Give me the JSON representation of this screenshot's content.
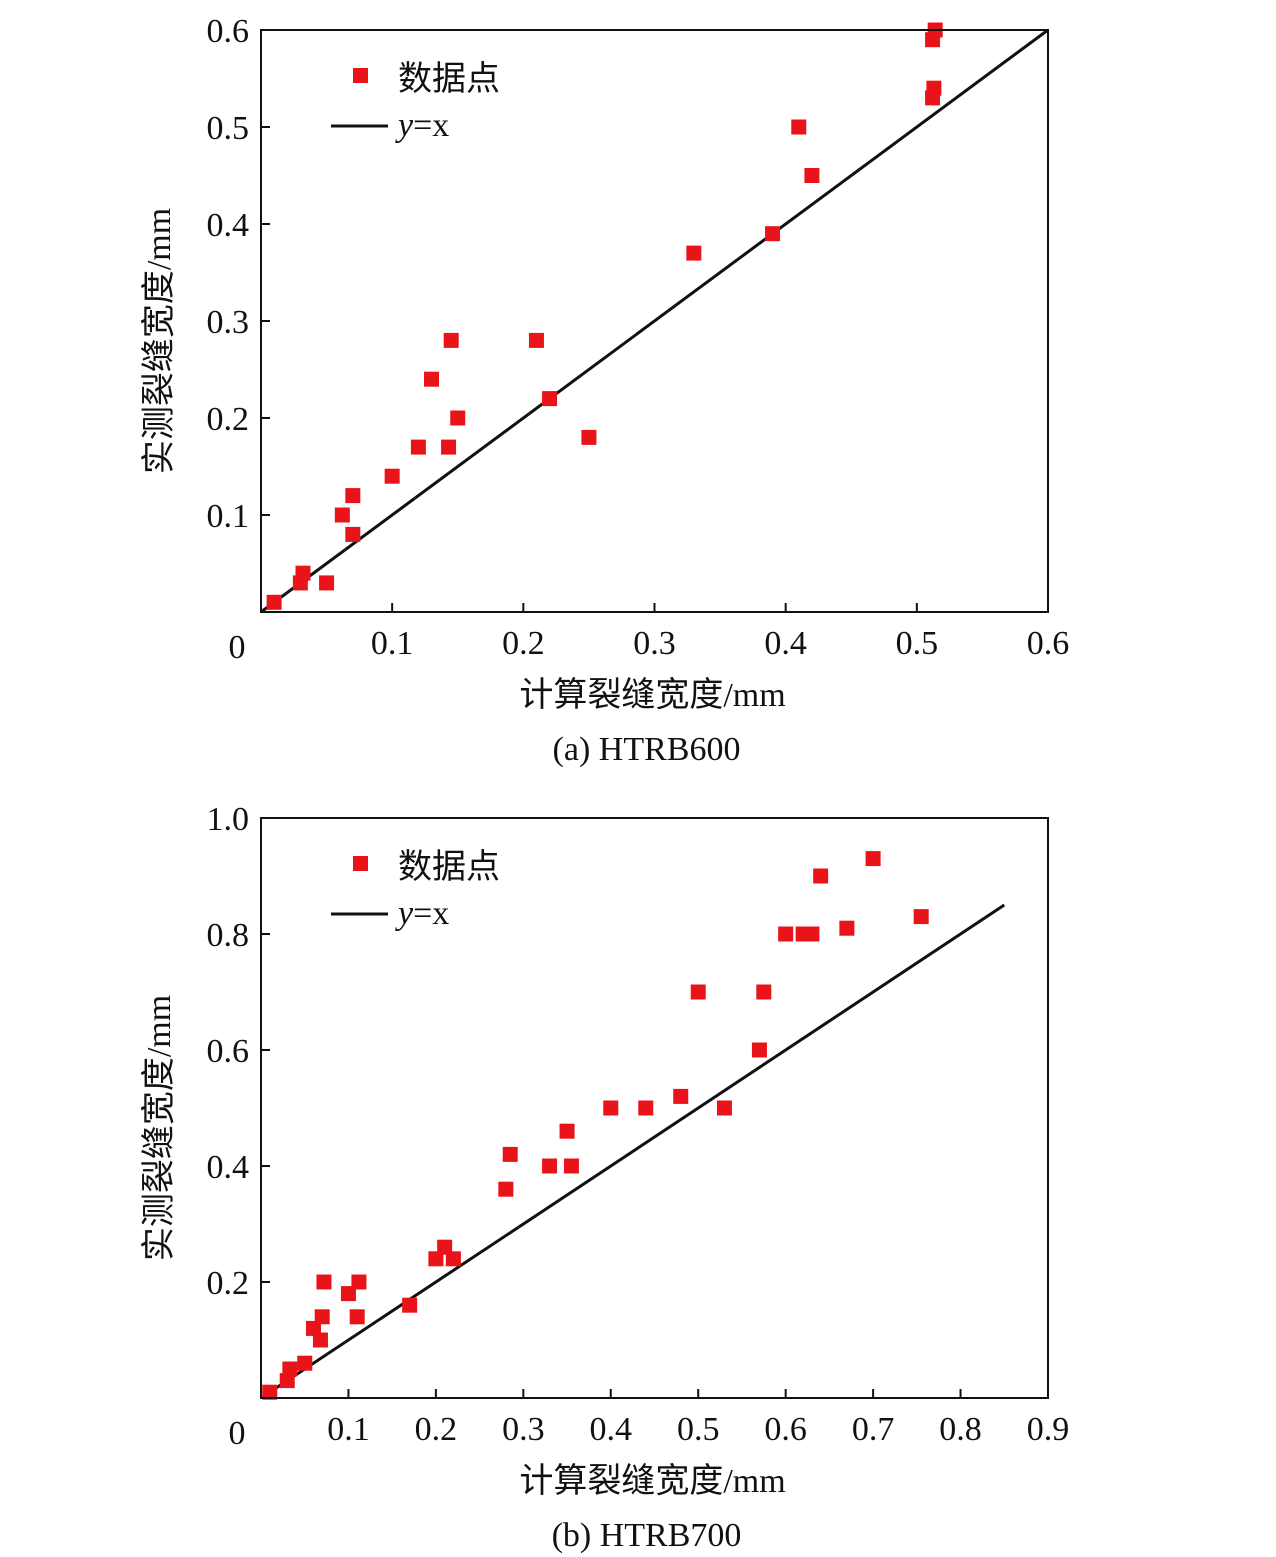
{
  "chart_data": [
    {
      "type": "scatter",
      "caption": "(a) HTRB600",
      "xlabel": "计算裂缝宽度/mm",
      "ylabel": "实测裂缝宽度/mm",
      "xlim": [
        0,
        0.6
      ],
      "ylim": [
        0,
        0.6
      ],
      "x_ticks": [
        "0",
        "0.1",
        "0.2",
        "0.3",
        "0.4",
        "0.5",
        "0.6"
      ],
      "y_ticks": [
        "0.1",
        "0.2",
        "0.3",
        "0.4",
        "0.5",
        "0.6"
      ],
      "legend": {
        "placement": "top-left",
        "points_label": "数据点",
        "line_label_main": "y",
        "line_label_rest": "=x"
      },
      "line": {
        "name": "y=x",
        "x": [
          0,
          0.6
        ],
        "y": [
          0,
          0.6
        ]
      },
      "series": [
        {
          "name": "数据点",
          "color": "#e8141a",
          "points": [
            [
              0.01,
              0.01
            ],
            [
              0.03,
              0.03
            ],
            [
              0.032,
              0.04
            ],
            [
              0.05,
              0.03
            ],
            [
              0.062,
              0.1
            ],
            [
              0.07,
              0.08
            ],
            [
              0.07,
              0.12
            ],
            [
              0.1,
              0.14
            ],
            [
              0.12,
              0.17
            ],
            [
              0.13,
              0.24
            ],
            [
              0.143,
              0.17
            ],
            [
              0.145,
              0.28
            ],
            [
              0.15,
              0.2
            ],
            [
              0.21,
              0.28
            ],
            [
              0.22,
              0.22
            ],
            [
              0.25,
              0.18
            ],
            [
              0.33,
              0.37
            ],
            [
              0.39,
              0.39
            ],
            [
              0.41,
              0.5
            ],
            [
              0.42,
              0.45
            ],
            [
              0.512,
              0.53
            ],
            [
              0.513,
              0.54
            ],
            [
              0.512,
              0.59
            ],
            [
              0.514,
              0.6
            ]
          ]
        }
      ]
    },
    {
      "type": "scatter",
      "caption": "(b) HTRB700",
      "xlabel": "计算裂缝宽度/mm",
      "ylabel": "实测裂缝宽度/mm",
      "xlim": [
        0,
        0.9
      ],
      "ylim": [
        0,
        1.0
      ],
      "x_ticks": [
        "0",
        "0.1",
        "0.2",
        "0.3",
        "0.4",
        "0.5",
        "0.6",
        "0.7",
        "0.8",
        "0.9"
      ],
      "y_ticks": [
        "0.2",
        "0.4",
        "0.6",
        "0.8",
        "1.0"
      ],
      "legend": {
        "placement": "top-left",
        "points_label": "数据点",
        "line_label_main": "y",
        "line_label_rest": "=x"
      },
      "line": {
        "name": "y=x",
        "x": [
          0,
          0.85
        ],
        "y": [
          0,
          0.85
        ]
      },
      "series": [
        {
          "name": "数据点",
          "color": "#e8141a",
          "points": [
            [
              0.01,
              0.01
            ],
            [
              0.03,
              0.03
            ],
            [
              0.033,
              0.05
            ],
            [
              0.05,
              0.06
            ],
            [
              0.06,
              0.12
            ],
            [
              0.068,
              0.1
            ],
            [
              0.07,
              0.14
            ],
            [
              0.072,
              0.2
            ],
            [
              0.1,
              0.18
            ],
            [
              0.11,
              0.14
            ],
            [
              0.112,
              0.2
            ],
            [
              0.17,
              0.16
            ],
            [
              0.2,
              0.24
            ],
            [
              0.21,
              0.26
            ],
            [
              0.22,
              0.24
            ],
            [
              0.28,
              0.36
            ],
            [
              0.285,
              0.42
            ],
            [
              0.33,
              0.4
            ],
            [
              0.35,
              0.46
            ],
            [
              0.355,
              0.4
            ],
            [
              0.4,
              0.5
            ],
            [
              0.44,
              0.5
            ],
            [
              0.48,
              0.52
            ],
            [
              0.5,
              0.7
            ],
            [
              0.53,
              0.5
            ],
            [
              0.57,
              0.6
            ],
            [
              0.575,
              0.7
            ],
            [
              0.6,
              0.8
            ],
            [
              0.62,
              0.8
            ],
            [
              0.63,
              0.8
            ],
            [
              0.64,
              0.9
            ],
            [
              0.67,
              0.81
            ],
            [
              0.7,
              0.93
            ],
            [
              0.755,
              0.83
            ]
          ]
        }
      ]
    }
  ]
}
